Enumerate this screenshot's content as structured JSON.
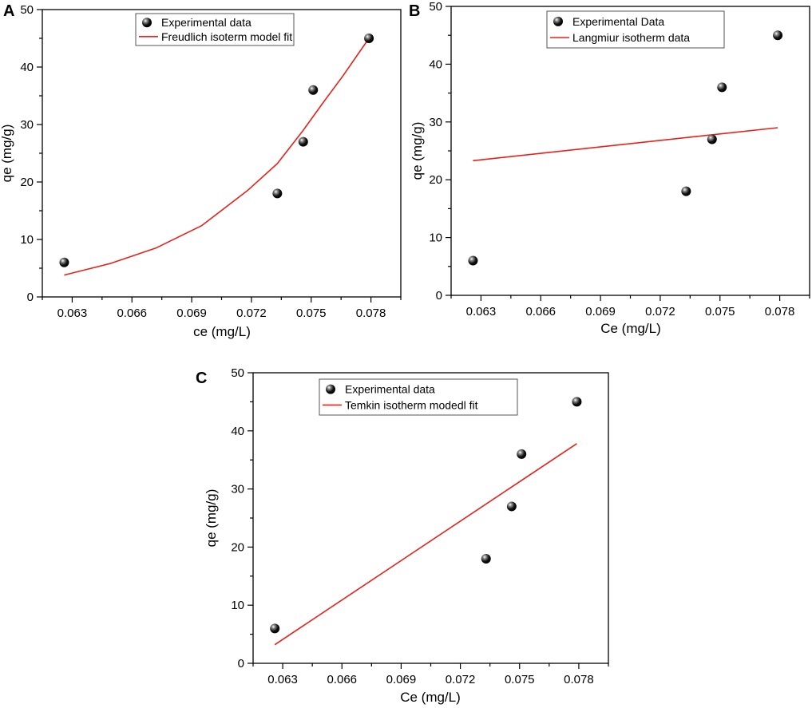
{
  "figure": {
    "background": "#ffffff",
    "marker_color": "#111111",
    "fit_color": "#e8201a",
    "axis_color": "#000000"
  },
  "chart_data": [
    {
      "panel": "A",
      "type": "scatter",
      "xlabel": "ce (mg/L)",
      "ylabel": "qe (mg/g)",
      "xlim": [
        0.0615,
        0.0795
      ],
      "ylim": [
        0,
        50
      ],
      "xticks": [
        "0.063",
        "0.066",
        "0.069",
        "0.072",
        "0.075",
        "0.078"
      ],
      "xtick_values": [
        0.063,
        0.066,
        0.069,
        0.072,
        0.075,
        0.078
      ],
      "yticks": [
        "0",
        "10",
        "20",
        "30",
        "40",
        "50"
      ],
      "ytick_values": [
        0,
        10,
        20,
        30,
        40,
        50
      ],
      "legend_position": "top-center",
      "series": [
        {
          "name": "Experimental data",
          "kind": "points",
          "x": [
            0.0626,
            0.0733,
            0.0746,
            0.0751,
            0.0779
          ],
          "y": [
            6,
            18,
            27,
            36,
            45
          ]
        },
        {
          "name": "Freudlich isoterm model fit",
          "kind": "curve",
          "x": [
            0.0626,
            0.0649,
            0.0672,
            0.0695,
            0.0718,
            0.0733,
            0.0746,
            0.0756,
            0.0766,
            0.0779
          ],
          "y": [
            3.8,
            5.8,
            8.5,
            12.4,
            18.5,
            23.2,
            29.0,
            33.8,
            38.5,
            45.0
          ]
        }
      ]
    },
    {
      "panel": "B",
      "type": "scatter",
      "xlabel": "Ce (mg/L)",
      "ylabel": "qe (mg/g)",
      "xlim": [
        0.0615,
        0.0795
      ],
      "ylim": [
        0,
        50
      ],
      "xticks": [
        "0.063",
        "0.066",
        "0.069",
        "0.072",
        "0.075",
        "0.078"
      ],
      "xtick_values": [
        0.063,
        0.066,
        0.069,
        0.072,
        0.075,
        0.078
      ],
      "yticks": [
        "0",
        "10",
        "20",
        "30",
        "40",
        "50"
      ],
      "ytick_values": [
        0,
        10,
        20,
        30,
        40,
        50
      ],
      "legend_position": "top-center",
      "series": [
        {
          "name": "Experimental Data",
          "kind": "points",
          "x": [
            0.0626,
            0.0733,
            0.0746,
            0.0751,
            0.0779
          ],
          "y": [
            6,
            18,
            27,
            36,
            45
          ]
        },
        {
          "name": "Langmiur isotherm data",
          "kind": "curve",
          "x": [
            0.0626,
            0.0779
          ],
          "y": [
            23.3,
            29.0
          ]
        }
      ]
    },
    {
      "panel": "C",
      "type": "scatter",
      "xlabel": "Ce (mg/L)",
      "ylabel": "qe (mg/g)",
      "xlim": [
        0.0615,
        0.0795
      ],
      "ylim": [
        0,
        50
      ],
      "xticks": [
        "0.063",
        "0.066",
        "0.069",
        "0.072",
        "0.075",
        "0.078"
      ],
      "xtick_values": [
        0.063,
        0.066,
        0.069,
        0.072,
        0.075,
        0.078
      ],
      "yticks": [
        "0",
        "10",
        "20",
        "30",
        "40",
        "50"
      ],
      "ytick_values": [
        0,
        10,
        20,
        30,
        40,
        50
      ],
      "legend_position": "top-center",
      "series": [
        {
          "name": "Experimental data",
          "kind": "points",
          "x": [
            0.0626,
            0.0733,
            0.0746,
            0.0751,
            0.0779
          ],
          "y": [
            6,
            18,
            27,
            36,
            45
          ]
        },
        {
          "name": "Temkin isotherm modedl fit",
          "kind": "curve",
          "x": [
            0.0626,
            0.0779
          ],
          "y": [
            3.2,
            37.8
          ]
        }
      ]
    }
  ]
}
